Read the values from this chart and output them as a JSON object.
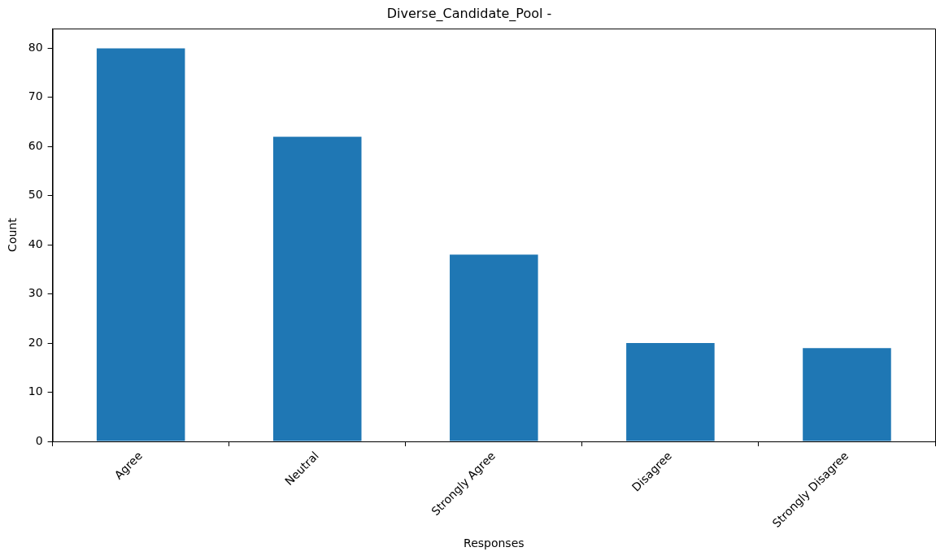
{
  "chart_data": {
    "type": "bar",
    "title": "Diverse_Candidate_Pool -",
    "xlabel": "Responses",
    "ylabel": "Count",
    "categories": [
      "Agree",
      "Neutral",
      "Strongly Agree",
      "Disagree",
      "Strongly Disagree"
    ],
    "values": [
      80,
      62,
      38,
      20,
      19
    ],
    "color": "#1f77b4",
    "ylim": [
      0,
      84
    ],
    "yticks": [
      0,
      10,
      20,
      30,
      40,
      50,
      60,
      70,
      80
    ],
    "grid": false,
    "legend": false
  }
}
